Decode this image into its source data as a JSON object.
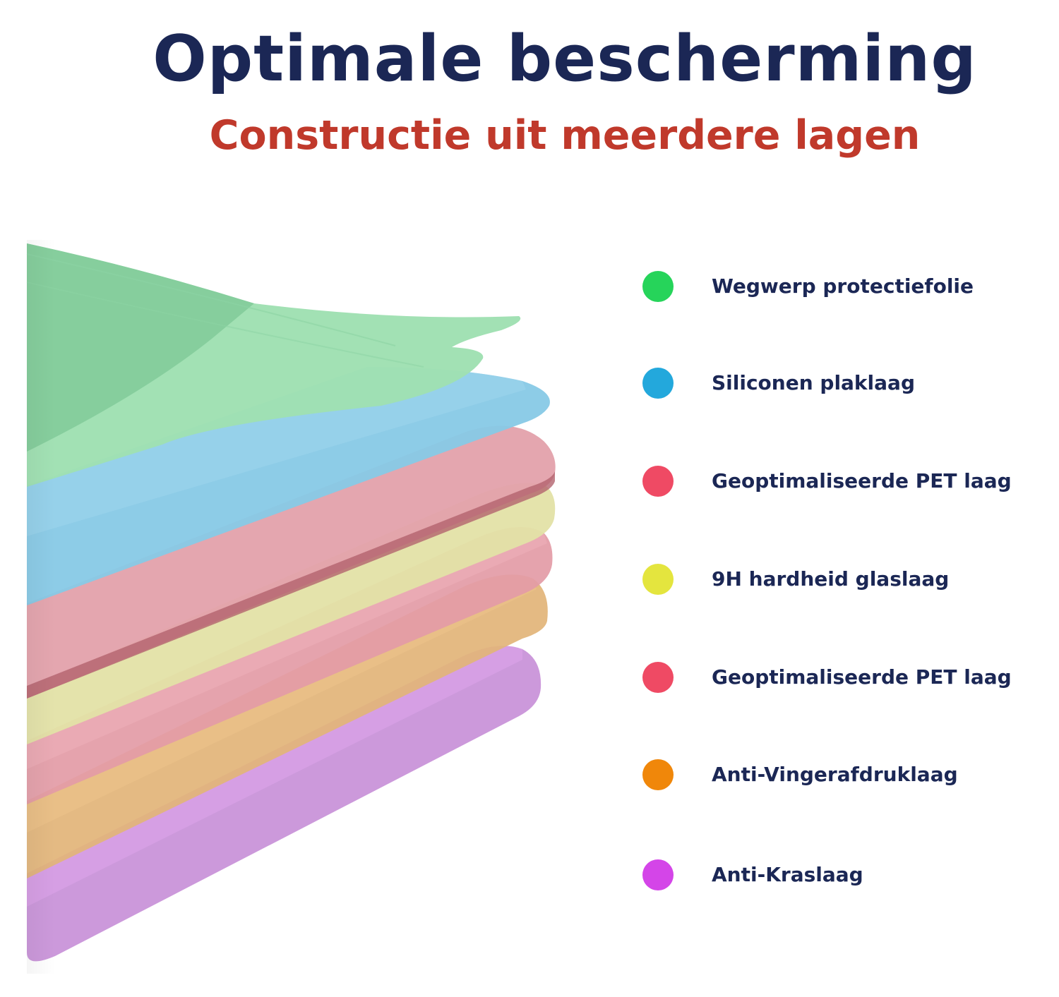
{
  "header": {
    "title": "Optimale bescherming",
    "subtitle": "Constructie uit meerdere lagen"
  },
  "colors": {
    "title": "#1b2755",
    "subtitle": "#c0392b"
  },
  "legend": {
    "items": [
      {
        "label": "Wegwerp protectiefolie",
        "color": "#26d45a",
        "icon": "dot-icon"
      },
      {
        "label": "Siliconen plaklaag",
        "color": "#23a8dc",
        "icon": "dot-icon"
      },
      {
        "label": "Geoptimaliseerde PET laag",
        "color": "#ef4a64",
        "icon": "dot-icon"
      },
      {
        "label": "9H hardheid glaslaag",
        "color": "#e4e53e",
        "icon": "dot-icon"
      },
      {
        "label": "Geoptimaliseerde PET laag",
        "color": "#ef4a64",
        "icon": "dot-icon"
      },
      {
        "label": "Anti-Vingerafdruklaag",
        "color": "#f0870a",
        "icon": "dot-icon"
      },
      {
        "label": "Anti-Kraslaag",
        "color": "#d445e8",
        "icon": "dot-icon"
      }
    ]
  }
}
